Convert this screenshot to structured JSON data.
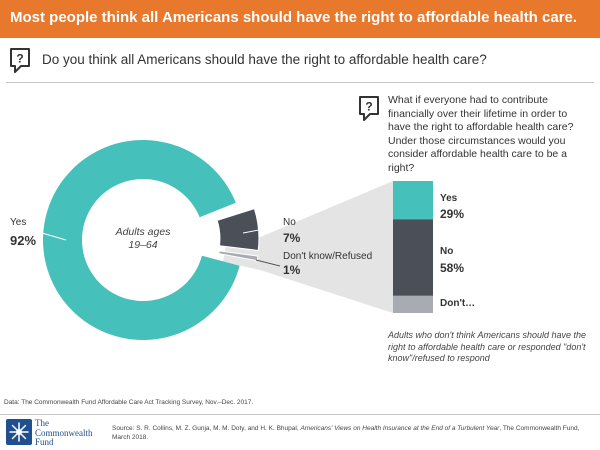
{
  "header": {
    "title": "Most people think all Americans should have the right to affordable health care."
  },
  "question": "Do you think all Americans should have the right to affordable health care?",
  "sub_question": "What if everyone had to contribute financially over their lifetime in order to have the right to affordable health care? Under those circumstances would you consider affordable health care to be a right?",
  "center_label_line1": "Adults ages",
  "center_label_line2": "19–64",
  "note": "Adults who don't think Americans should have the right to affordable health care or responded \"don't know\"/refused to respond",
  "data_note": "Data: The Commonwealth Fund Affordable Care Act Tracking Survey, Nov.–Dec. 2017.",
  "source": {
    "prefix": "Source: S. R. Collins, M. Z. Gunja, M. M. Doty, and H. K. Bhupal, ",
    "title": "Americans' Views on Health Insurance at the End of a Turbulent Year",
    "suffix": ", The Commonwealth Fund, March 2018."
  },
  "logo": {
    "line1": "The",
    "line2": "Commonwealth",
    "line3": "Fund"
  },
  "colors": {
    "header": "#e8782b",
    "yes": "#45c0bb",
    "no": "#4b4f58",
    "dk": "#a8abb1",
    "connector": "#e4e4e4"
  },
  "chart_data": [
    {
      "type": "pie",
      "style": "donut",
      "title": "Do you think all Americans should have the right to affordable health care?",
      "center_label": "Adults ages 19–64",
      "slices": [
        {
          "label": "Yes",
          "value": 92,
          "display": "92%"
        },
        {
          "label": "No",
          "value": 7,
          "display": "7%"
        },
        {
          "label": "Don't know/Refused",
          "value": 1,
          "display": "1%"
        }
      ]
    },
    {
      "type": "bar",
      "style": "stacked-100",
      "title": "What if everyone had to contribute financially over their lifetime in order to have the right to affordable health care? Under those circumstances would you consider affordable health care to be a right?",
      "segments": [
        {
          "label": "Yes",
          "value": 29,
          "display": "29%"
        },
        {
          "label": "No",
          "value": 58,
          "display": "58%"
        },
        {
          "label": "Don't…",
          "value": 13,
          "display": ""
        }
      ]
    }
  ]
}
